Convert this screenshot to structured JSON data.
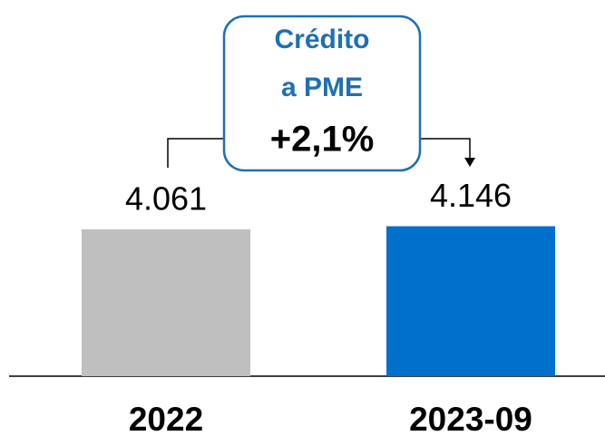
{
  "chart_data": {
    "type": "bar",
    "categories": [
      "2022",
      "2023-09"
    ],
    "series": [
      {
        "values": [
          4061,
          4146
        ],
        "value_labels": [
          "4.061",
          "4.146"
        ],
        "colors": [
          "#bfbfbf",
          "#0070cd"
        ]
      }
    ],
    "ylim": [
      0,
      10000
    ],
    "annotation": {
      "lines": [
        "Crédito",
        "a PME"
      ],
      "change": "+2,1%"
    }
  }
}
